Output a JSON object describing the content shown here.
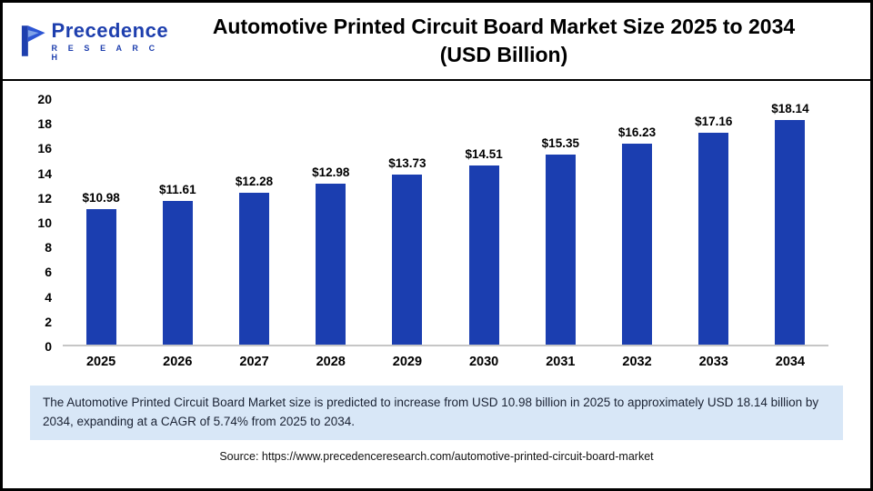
{
  "header": {
    "logo": {
      "name": "Precedence",
      "subname": "R E S E A R C H"
    },
    "title_line1": "Automotive Printed Circuit Board Market Size 2025 to 2034",
    "title_line2": "(USD Billion)"
  },
  "chart_data": {
    "type": "bar",
    "title": "Automotive Printed Circuit Board Market Size 2025 to 2034 (USD Billion)",
    "categories": [
      "2025",
      "2026",
      "2027",
      "2028",
      "2029",
      "2030",
      "2031",
      "2032",
      "2033",
      "2034"
    ],
    "values": [
      10.98,
      11.61,
      12.28,
      12.98,
      13.73,
      14.51,
      15.35,
      16.23,
      17.16,
      18.14
    ],
    "value_labels": [
      "$10.98",
      "$11.61",
      "$12.28",
      "$12.98",
      "$13.73",
      "$14.51",
      "$15.35",
      "$16.23",
      "$17.16",
      "$18.14"
    ],
    "xlabel": "",
    "ylabel": "",
    "ylim": [
      0,
      20
    ],
    "yticks": [
      0,
      2,
      4,
      6,
      8,
      10,
      12,
      14,
      16,
      18,
      20
    ],
    "grid": false,
    "legend": false,
    "bar_color": "#1b3eb0"
  },
  "note": {
    "text": "The Automotive Printed Circuit Board Market size is predicted to increase from USD 10.98 billion in 2025 to approximately USD 18.14 billion by 2034, expanding at a CAGR of 5.74% from 2025 to 2034."
  },
  "source": {
    "text": "Source: https://www.precedenceresearch.com/automotive-printed-circuit-board-market"
  }
}
